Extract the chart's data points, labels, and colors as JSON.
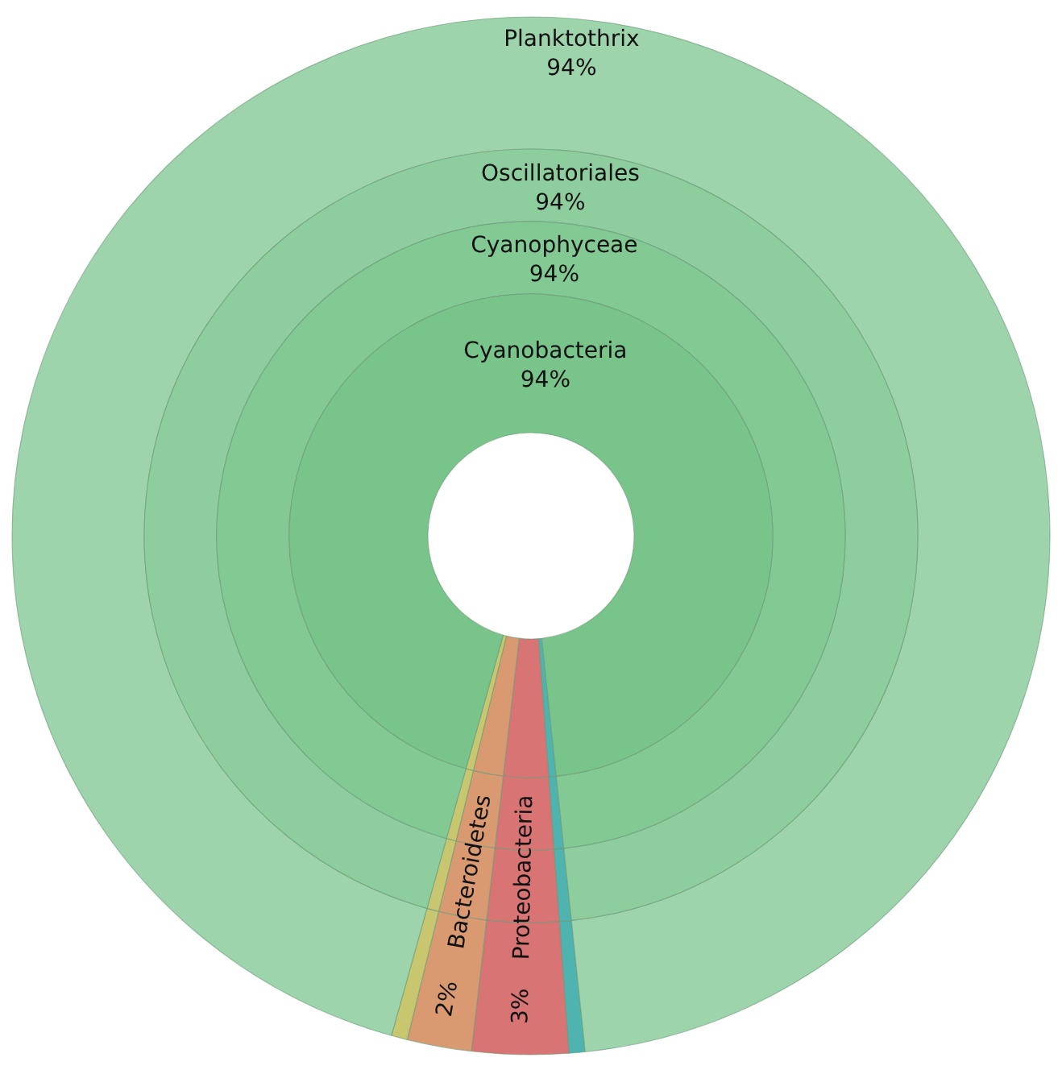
{
  "chart_data": {
    "type": "other",
    "categories": [
      null,
      "Proteobacteria",
      "Bacteroidetes",
      null,
      "Cyanobacteria"
    ],
    "series": [
      {
        "name": "Planktothrix",
        "values": [
          null,
          null,
          null,
          null,
          94
        ],
        "value_labels": [
          null,
          null,
          null,
          null,
          "94%"
        ],
        "colors": [
          "#4fb3b0",
          "#d87474",
          "#d99a72",
          "#c8c770",
          "#9dd4ab"
        ]
      },
      {
        "name": "Oscillatoriales",
        "values": [
          null,
          null,
          null,
          null,
          94
        ],
        "value_labels": [
          null,
          null,
          null,
          null,
          "94%"
        ],
        "colors": [
          "#4fb3b0",
          "#d87474",
          "#d99a72",
          "#c8c770",
          "#8dcd9e"
        ]
      },
      {
        "name": "Cyanophyceae",
        "values": [
          null,
          null,
          null,
          null,
          94
        ],
        "value_labels": [
          null,
          null,
          null,
          null,
          "94%"
        ],
        "colors": [
          "#4fb3b0",
          "#d87474",
          "#d99a72",
          "#c8c770",
          "#82c994"
        ]
      },
      {
        "values": [
          null,
          3,
          2,
          null,
          94
        ],
        "value_labels": [
          null,
          "3%",
          "2%",
          null,
          "94%"
        ],
        "colors": [
          "#4fb3b0",
          "#d87474",
          "#d99a72",
          "#c8c770",
          "#78c48a"
        ]
      }
    ]
  }
}
